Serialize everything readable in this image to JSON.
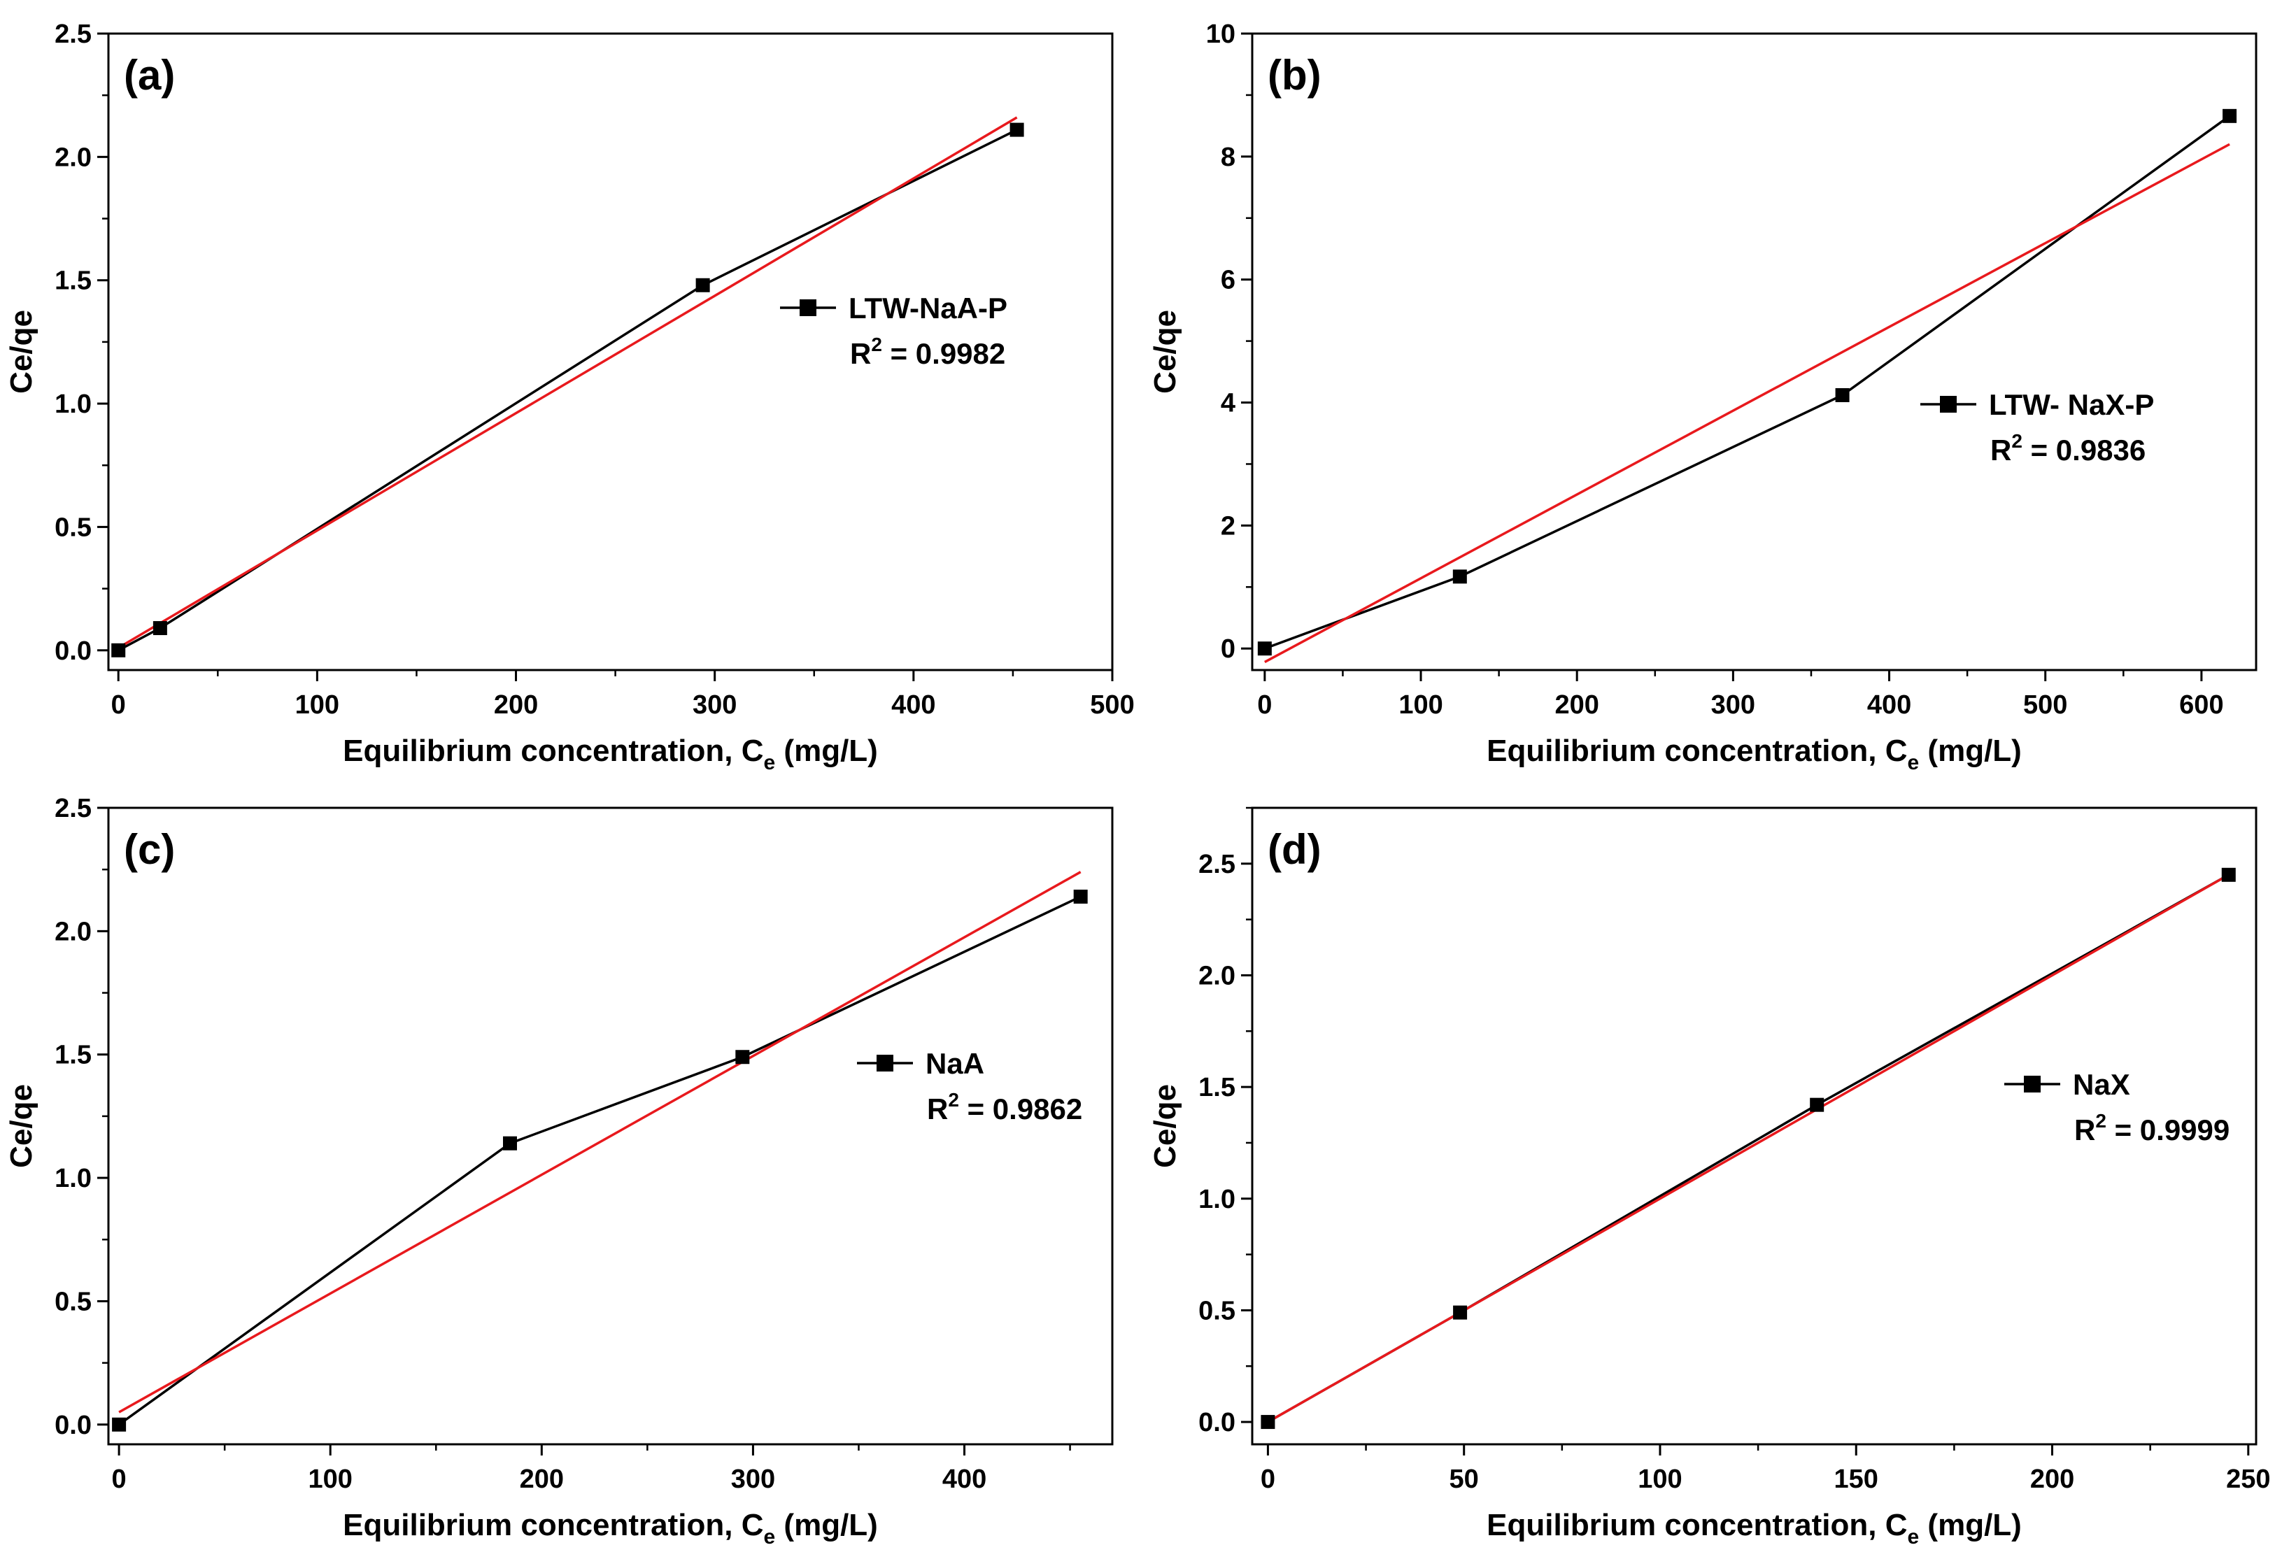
{
  "colors": {
    "data_line": "#000000",
    "fit_line": "#e8191d",
    "marker": "#000000"
  },
  "chart_data": [
    {
      "type": "line",
      "panel_label": "(a)",
      "xlabel": "Equilibrium concentration, C",
      "xlabel_subscript": "e",
      "xlabel_unit": "(mg/L)",
      "ylabel": "Ce/qe",
      "xlim": [
        -5,
        500
      ],
      "ylim": [
        -0.08,
        2.5
      ],
      "xticks": [
        0,
        100,
        200,
        300,
        400,
        500
      ],
      "yticks": [
        0.0,
        0.5,
        1.0,
        1.5,
        2.0,
        2.5
      ],
      "xtick_labels": [
        "0",
        "100",
        "200",
        "300",
        "400",
        "500"
      ],
      "ytick_labels": [
        "0.0",
        "0.5",
        "1.0",
        "1.5",
        "2.0",
        "2.5"
      ],
      "series": [
        {
          "name": "LTW-NaA-P",
          "x": [
            0,
            21,
            294,
            452
          ],
          "y": [
            0.0,
            0.09,
            1.48,
            2.11
          ]
        }
      ],
      "fit": {
        "x": [
          0,
          452
        ],
        "y": [
          0.01,
          2.16
        ]
      },
      "r2_label": "R",
      "r2_value": " = 0.9982",
      "legend_position": "upper-middle-right"
    },
    {
      "type": "line",
      "panel_label": "(b)",
      "xlabel": "Equilibrium concentration, C",
      "xlabel_subscript": "e",
      "xlabel_unit": "(mg/L)",
      "ylabel": "Ce/qe",
      "xlim": [
        -8,
        635
      ],
      "ylim": [
        -0.35,
        10
      ],
      "xticks": [
        0,
        100,
        200,
        300,
        400,
        500,
        600
      ],
      "yticks": [
        0,
        2,
        4,
        6,
        8,
        10
      ],
      "xtick_labels": [
        "0",
        "100",
        "200",
        "300",
        "400",
        "500",
        "600"
      ],
      "ytick_labels": [
        "0",
        "2",
        "4",
        "6",
        "8",
        "10"
      ],
      "series": [
        {
          "name": "LTW- NaX-P",
          "x": [
            0,
            125,
            370,
            618
          ],
          "y": [
            0.0,
            1.17,
            4.12,
            8.66
          ]
        }
      ],
      "fit": {
        "x": [
          0,
          618
        ],
        "y": [
          -0.22,
          8.2
        ]
      },
      "r2_label": "R",
      "r2_value": " = 0.9836",
      "legend_position": "middle-right"
    },
    {
      "type": "line",
      "panel_label": "(c)",
      "xlabel": "Equilibrium concentration, C",
      "xlabel_subscript": "e",
      "xlabel_unit": "(mg/L)",
      "ylabel": "Ce/qe",
      "xlim": [
        -5,
        470
      ],
      "ylim": [
        -0.08,
        2.5
      ],
      "xticks": [
        0,
        100,
        200,
        300,
        400
      ],
      "yticks": [
        0.0,
        0.5,
        1.0,
        1.5,
        2.0,
        2.5
      ],
      "xtick_labels": [
        "0",
        "100",
        "200",
        "300",
        "400"
      ],
      "ytick_labels": [
        "0.0",
        "0.5",
        "1.0",
        "1.5",
        "2.0",
        "2.5"
      ],
      "series": [
        {
          "name": "NaA",
          "x": [
            0,
            185,
            295,
            455
          ],
          "y": [
            0.0,
            1.14,
            1.49,
            2.14
          ]
        }
      ],
      "fit": {
        "x": [
          0,
          455
        ],
        "y": [
          0.05,
          2.24
        ]
      },
      "r2_label": "R",
      "r2_value": " = 0.9862",
      "legend_position": "middle-right"
    },
    {
      "type": "line",
      "panel_label": "(d)",
      "xlabel": "Equilibrium concentration, C",
      "xlabel_subscript": "e",
      "xlabel_unit": "(mg/L)",
      "ylabel": "Ce/qe",
      "xlim": [
        -4,
        252
      ],
      "ylim": [
        -0.1,
        2.75
      ],
      "xticks": [
        0,
        50,
        100,
        150,
        200,
        250
      ],
      "yticks": [
        0.0,
        0.5,
        1.0,
        1.5,
        2.0,
        2.5
      ],
      "xtick_labels": [
        "0",
        "50",
        "100",
        "150",
        "200",
        "250"
      ],
      "ytick_labels": [
        "0.0",
        "0.5",
        "1.0",
        "1.5",
        "2.0",
        "2.5"
      ],
      "series": [
        {
          "name": "NaX",
          "x": [
            0,
            49,
            140,
            245
          ],
          "y": [
            0.0,
            0.49,
            1.42,
            2.45
          ]
        }
      ],
      "fit": {
        "x": [
          0,
          245
        ],
        "y": [
          0.0,
          2.45
        ]
      },
      "r2_label": "R",
      "r2_value": " = 0.9999",
      "legend_position": "middle-right"
    }
  ]
}
